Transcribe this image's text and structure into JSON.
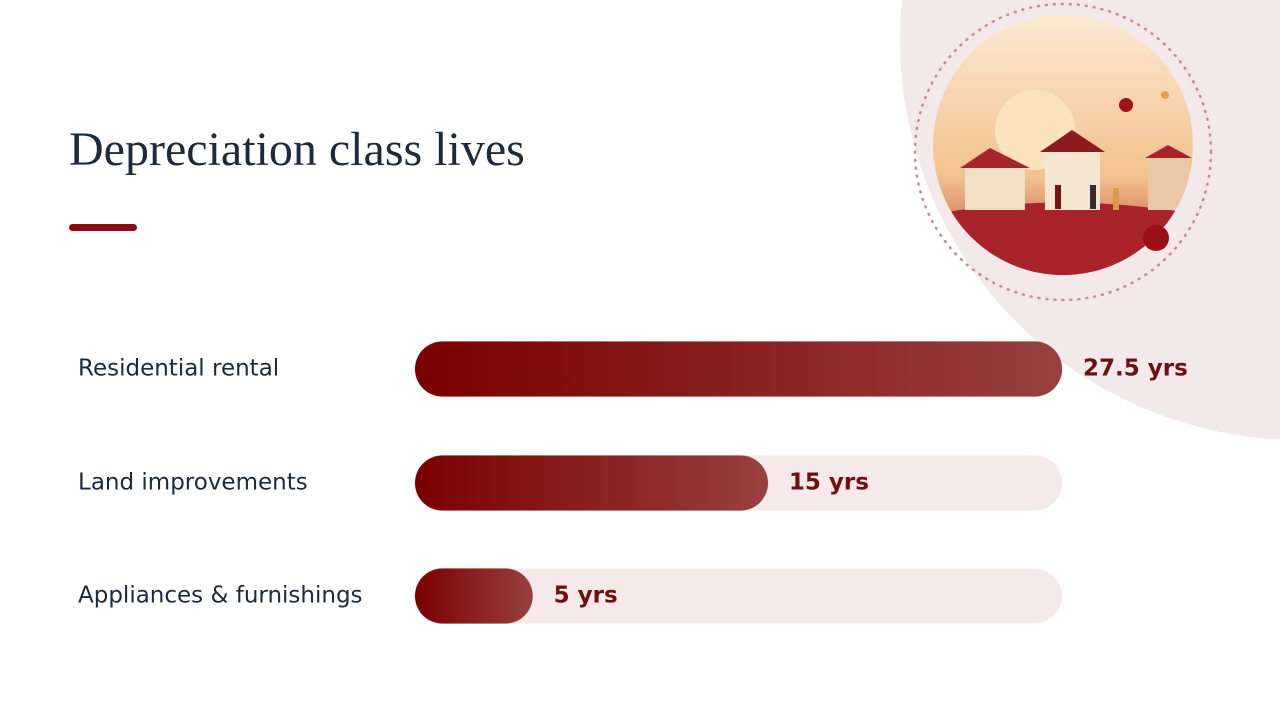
{
  "chart_data": {
    "type": "bar",
    "title": "Depreciation class lives",
    "categories": [
      "Residential rental",
      "Land improvements",
      "Appliances & furnishings"
    ],
    "values": [
      27.5,
      15,
      5
    ],
    "value_labels": [
      "27.5 yrs",
      "15 yrs",
      "5 yrs"
    ],
    "xlim": [
      0,
      27.5
    ],
    "color": "#7b0a0a"
  }
}
